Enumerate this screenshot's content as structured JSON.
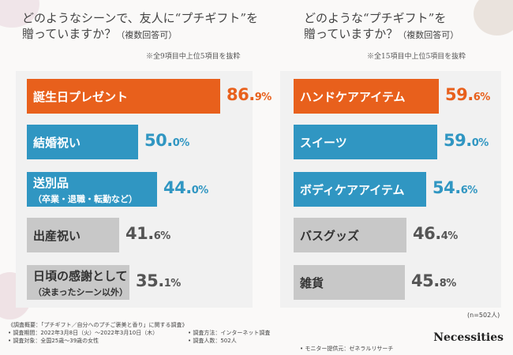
{
  "colors": {
    "orange": "#e8601c",
    "blue": "#3096c2",
    "gray": "#c8c8c8"
  },
  "left": {
    "title_line1": "どのようなシーンで、友人に“プチギフト”を",
    "title_line2": "贈っていますか？",
    "title_suffix": "（複数回答可）",
    "note": "※全9項目中上位5項目を抜粋"
  },
  "right": {
    "title_line1": "どのような“プチギフト”を",
    "title_line2": "贈っていますか？",
    "title_suffix": "（複数回答可）",
    "note": "※全15項目中上位5項目を抜粋"
  },
  "chart_data": [
    {
      "type": "bar",
      "orientation": "horizontal",
      "title": "どのようなシーンで、友人に“プチギフト”を贈っていますか？（複数回答可）",
      "categories": [
        "誕生日プレゼント",
        "結婚祝い",
        "送別品（卒業・退職・転勤など）",
        "出産祝い",
        "日頃の感謝として（決まったシーン以外）"
      ],
      "labels": [
        {
          "main": "誕生日プレゼント",
          "sub": ""
        },
        {
          "main": "結婚祝い",
          "sub": ""
        },
        {
          "main": "送別品",
          "sub": "（卒業・退職・転勤など）"
        },
        {
          "main": "出産祝い",
          "sub": ""
        },
        {
          "main": "日頃の感謝として",
          "sub": "（決まったシーン以外）"
        }
      ],
      "values": [
        86.9,
        50.0,
        44.0,
        41.6,
        35.1
      ],
      "value_int": [
        "86.",
        "50.",
        "44.",
        "41.",
        "35."
      ],
      "value_dec": [
        "9%",
        "0%",
        "0%",
        "6%",
        "1%"
      ],
      "unit": "%"
    },
    {
      "type": "bar",
      "orientation": "horizontal",
      "title": "どのような“プチギフト”を贈っていますか？（複数回答可）",
      "categories": [
        "ハンドケアアイテム",
        "スイーツ",
        "ボディケアアイテム",
        "バスグッズ",
        "雑貨"
      ],
      "labels": [
        {
          "main": "ハンドケアアイテム",
          "sub": ""
        },
        {
          "main": "スイーツ",
          "sub": ""
        },
        {
          "main": "ボディケアアイテム",
          "sub": ""
        },
        {
          "main": "バスグッズ",
          "sub": ""
        },
        {
          "main": "雑貨",
          "sub": ""
        }
      ],
      "values": [
        59.6,
        59.0,
        54.6,
        46.4,
        45.8
      ],
      "value_int": [
        "59.",
        "59.",
        "54.",
        "46.",
        "45."
      ],
      "value_dec": [
        "6%",
        "0%",
        "6%",
        "4%",
        "8%"
      ],
      "unit": "%"
    }
  ],
  "sample_note": "(n=502人)",
  "footer": {
    "survey": "《調査概要：「プチギフト／自分へのプチご褒美と香り」に関する調査》",
    "period": "• 調査期間：2022年3月8日（火）〜2022年3月10日（木）",
    "method": "• 調査方法：インターネット調査",
    "target": "• 調査対象：全国25歳〜39歳の女性",
    "count": "• 調査人数：502人",
    "provider": "• モニター提供元：ゼネラルリサーチ"
  },
  "brand": "Necessities"
}
